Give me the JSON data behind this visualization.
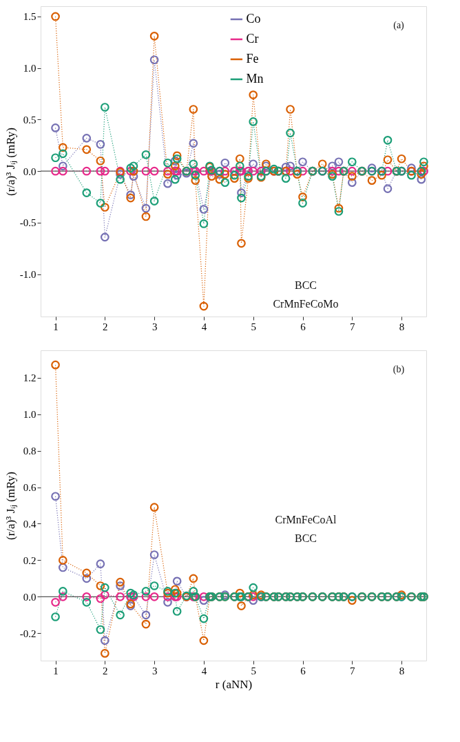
{
  "chart_data": [
    {
      "type": "line",
      "ylabel": "(r/a)³ Jᵢⱼ (mRy)",
      "marker": "circle",
      "line_style": "dotted",
      "grid": false,
      "legend": "top right",
      "annotations": [
        "(a)",
        "BCC",
        "CrMnFeCoMo"
      ],
      "x": [
        1,
        1.15,
        1.63,
        1.91,
        2,
        2.31,
        2.52,
        2.58,
        2.83,
        3,
        3.27,
        3.42,
        3.46,
        3.65,
        3.79,
        3.83,
        4,
        4.12,
        4.16,
        4.32,
        4.43,
        4.62,
        4.73,
        4.76,
        4.9,
        5,
        5.16,
        5.26,
        5.42,
        5.51,
        5.66,
        5.75,
        5.89,
        6,
        6.2,
        6.4,
        6.6,
        6.73,
        6.83,
        7,
        7.2,
        7.4,
        7.6,
        7.72,
        7.9,
        8,
        8.2,
        8.4,
        8.45
      ],
      "xlim": [
        0.7,
        8.5
      ],
      "xticks": [
        1,
        2,
        3,
        4,
        5,
        6,
        7,
        8
      ],
      "ylim": [
        -1.41,
        1.6
      ],
      "yticks": [
        {
          "value": -1,
          "label": "-1.0"
        },
        {
          "value": -0.5,
          "label": "-0.5"
        },
        {
          "value": 0,
          "label": "0.0"
        },
        {
          "value": 0.5,
          "label": "0.5"
        },
        {
          "value": 1,
          "label": "1.0"
        },
        {
          "value": 1.5,
          "label": "1.5"
        }
      ],
      "ref_lines": [
        {
          "axis": "y",
          "value": 0,
          "color": "#555555"
        }
      ],
      "series": [
        {
          "name": "Co",
          "color": "#7570b3",
          "values": [
            0.42,
            0.05,
            0.32,
            0.26,
            -0.64,
            -0.03,
            -0.23,
            -0.05,
            -0.36,
            1.08,
            -0.12,
            0.1,
            -0.04,
            -0.02,
            0.27,
            0,
            -0.37,
            null,
            0,
            -0.03,
            0.08,
            0,
            0,
            -0.21,
            0,
            0.07,
            0,
            0.05,
            0,
            0,
            0.04,
            0.05,
            0,
            0.09,
            0,
            0,
            0.05,
            0.09,
            0,
            -0.11,
            0,
            0.03,
            0,
            -0.17,
            0,
            0,
            0.03,
            -0.08,
            0
          ]
        },
        {
          "name": "Cr",
          "color": "#e7298a",
          "values": [
            0,
            0,
            0,
            0,
            0,
            0,
            0,
            0,
            0,
            0,
            0,
            0,
            0,
            0,
            0,
            0,
            0,
            0,
            0,
            0,
            0,
            0,
            0,
            0,
            0,
            0,
            0,
            0,
            0,
            0,
            0,
            0,
            0,
            0,
            0,
            0,
            0,
            0,
            0,
            0,
            0,
            0,
            0,
            0,
            0,
            0,
            0,
            0,
            0
          ]
        },
        {
          "name": "Fe",
          "color": "#d95f02",
          "values": [
            1.5,
            0.23,
            0.21,
            0.1,
            -0.35,
            -0.01,
            -0.26,
            0,
            -0.44,
            1.31,
            -0.03,
            0.05,
            0.15,
            0,
            0.6,
            -0.09,
            -1.31,
            0.04,
            -0.05,
            -0.08,
            -0.03,
            -0.07,
            0.12,
            -0.7,
            -0.07,
            0.74,
            -0.06,
            0.07,
            0,
            0,
            0,
            0.6,
            -0.03,
            -0.25,
            0,
            0.07,
            -0.03,
            -0.36,
            0,
            -0.05,
            0,
            -0.09,
            -0.04,
            0.11,
            0,
            0.12,
            0,
            -0.03,
            0.05
          ]
        },
        {
          "name": "Mn",
          "color": "#1b9e77",
          "values": [
            0.13,
            0.17,
            -0.21,
            -0.31,
            0.62,
            -0.08,
            0.03,
            0.05,
            0.16,
            -0.29,
            0.08,
            -0.08,
            0.12,
            0,
            0.07,
            -0.04,
            -0.51,
            0.05,
            0.01,
            0,
            -0.11,
            -0.04,
            0.05,
            -0.26,
            -0.05,
            0.48,
            -0.05,
            0,
            0.02,
            0,
            -0.07,
            0.37,
            0,
            -0.31,
            0,
            0,
            -0.05,
            -0.39,
            0,
            0.09,
            0,
            0,
            0,
            0.3,
            0,
            0,
            -0.04,
            0,
            0.09
          ]
        }
      ]
    },
    {
      "type": "line",
      "xlabel": "r (aNN)",
      "ylabel": "(r/a)³ Jᵢⱼ (mRy)",
      "marker": "circle",
      "line_style": "dotted",
      "grid": false,
      "legend": "top right",
      "annotations": [
        "(b)",
        "CrMnFeCoAl",
        "BCC"
      ],
      "x": [
        1,
        1.15,
        1.63,
        1.91,
        2,
        2.31,
        2.52,
        2.58,
        2.83,
        3,
        3.27,
        3.42,
        3.46,
        3.65,
        3.79,
        3.83,
        4,
        4.12,
        4.16,
        4.32,
        4.43,
        4.62,
        4.73,
        4.76,
        4.9,
        5,
        5.16,
        5.26,
        5.42,
        5.51,
        5.66,
        5.75,
        5.89,
        6,
        6.2,
        6.4,
        6.6,
        6.73,
        6.83,
        7,
        7.2,
        7.4,
        7.6,
        7.72,
        7.9,
        8,
        8.2,
        8.4,
        8.45
      ],
      "xlim": [
        0.7,
        8.5
      ],
      "xticks": [
        1,
        2,
        3,
        4,
        5,
        6,
        7,
        8
      ],
      "ylim": [
        -0.35,
        1.35
      ],
      "yticks": [
        {
          "value": -0.2,
          "label": "-0.2"
        },
        {
          "value": 0,
          "label": "0.0"
        },
        {
          "value": 0.2,
          "label": "0.2"
        },
        {
          "value": 0.4,
          "label": "0.4"
        },
        {
          "value": 0.6,
          "label": "0.6"
        },
        {
          "value": 0.8,
          "label": "0.8"
        },
        {
          "value": 1,
          "label": "1.0"
        },
        {
          "value": 1.2,
          "label": "1.2"
        }
      ],
      "ref_lines": [
        {
          "axis": "y",
          "value": 0,
          "color": "#555555"
        }
      ],
      "series": [
        {
          "name": "Co",
          "color": "#7570b3",
          "values": [
            0.55,
            0.16,
            0.1,
            0.18,
            -0.24,
            0.06,
            -0.05,
            0,
            -0.1,
            0.23,
            -0.03,
            0,
            0.085,
            0,
            0,
            0,
            -0.02,
            0,
            0,
            0,
            0.01,
            0,
            0,
            0,
            0,
            -0.02,
            0,
            0,
            0,
            0,
            0,
            0,
            0,
            0,
            0,
            0,
            0,
            0,
            0,
            0,
            0,
            0,
            0,
            0,
            0,
            0,
            0,
            0,
            0
          ]
        },
        {
          "name": "Cr",
          "color": "#e7298a",
          "values": [
            -0.03,
            0,
            0,
            -0.01,
            0.01,
            0,
            0,
            0,
            0,
            0,
            0,
            0,
            0,
            0,
            0,
            0,
            0,
            0,
            null,
            null,
            null,
            null,
            null,
            null,
            0,
            0,
            0,
            null,
            null,
            null,
            null,
            null,
            null,
            null,
            null,
            null,
            null,
            null,
            null,
            null,
            null,
            null,
            null,
            null,
            null,
            null,
            null,
            null,
            null
          ]
        },
        {
          "name": "Fe",
          "color": "#d95f02",
          "values": [
            1.27,
            0.2,
            0.13,
            0.06,
            -0.31,
            0.08,
            -0.04,
            null,
            -0.15,
            0.49,
            0.02,
            0.04,
            0.02,
            0,
            0.1,
            0,
            -0.24,
            0,
            0,
            0,
            0,
            0,
            0.02,
            -0.05,
            0,
            0.01,
            0.01,
            0,
            0,
            0,
            0,
            0,
            0,
            0,
            0,
            0,
            0,
            0,
            0,
            -0.02,
            0,
            0,
            0,
            0,
            0,
            0.01,
            0,
            0,
            0
          ]
        },
        {
          "name": "Mn",
          "color": "#1b9e77",
          "values": [
            -0.11,
            0.03,
            -0.03,
            -0.18,
            0.05,
            -0.1,
            0.02,
            0.01,
            0.03,
            0.06,
            0.03,
            0.02,
            -0.08,
            0.005,
            0.03,
            0,
            -0.12,
            0,
            0,
            0,
            0,
            0,
            0,
            0,
            0,
            0.05,
            0,
            0,
            0,
            0,
            0,
            0,
            0,
            0,
            0,
            0,
            0,
            0,
            0,
            0,
            0,
            0,
            0,
            0,
            0,
            0,
            0,
            0,
            0
          ]
        }
      ]
    }
  ]
}
